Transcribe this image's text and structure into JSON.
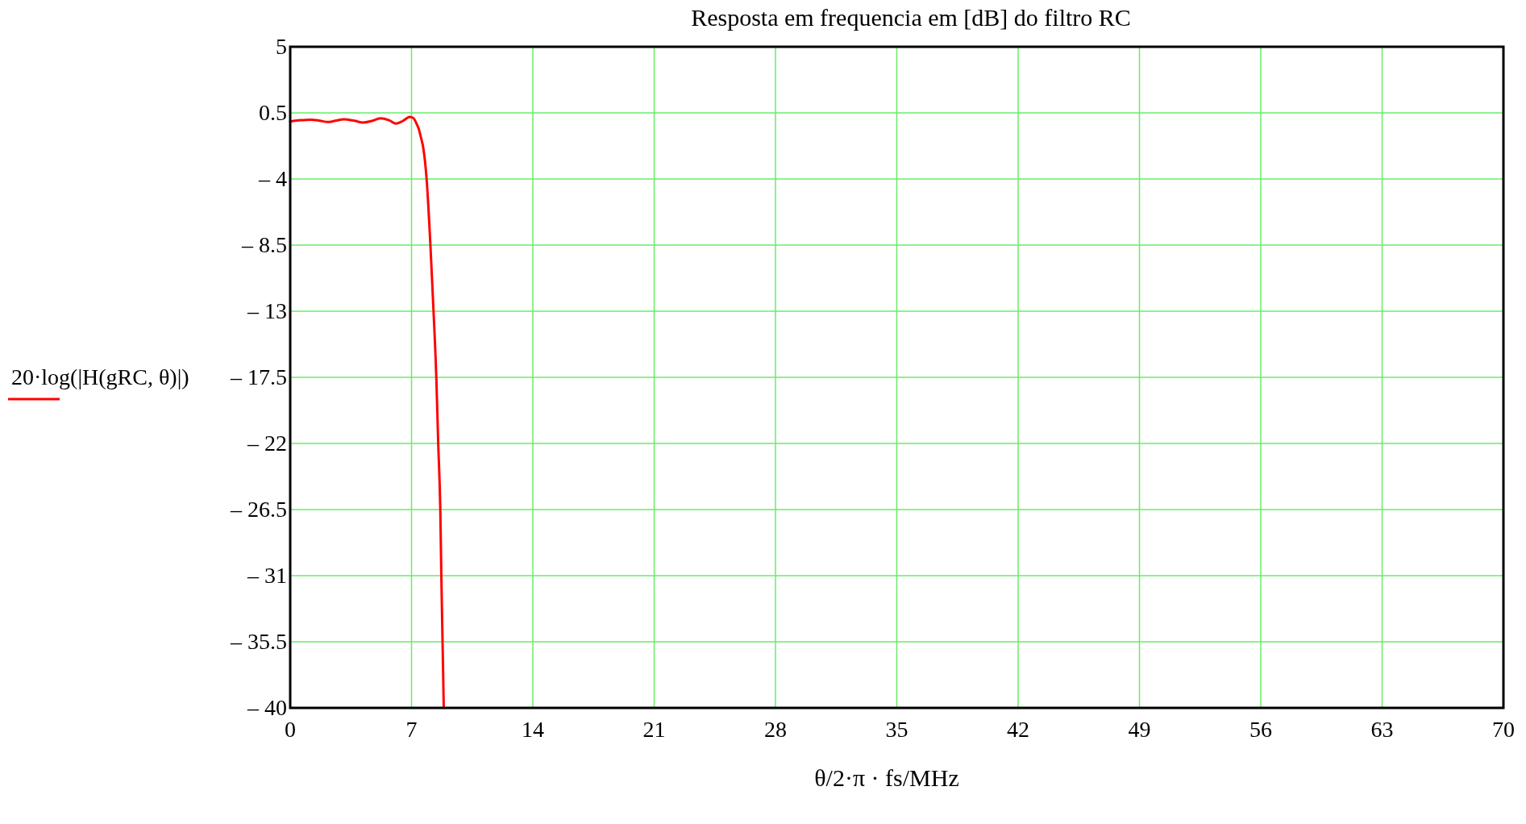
{
  "chart_data": {
    "type": "line",
    "title": "Resposta em frequencia em [dB] do filtro RC",
    "xlabel": "θ/2·π · fs/MHz",
    "ylabel": "20·log(|H(gRC, θ)|)",
    "xlim": [
      0,
      70
    ],
    "xticks": [
      0,
      7,
      14,
      21,
      28,
      35,
      42,
      49,
      56,
      63,
      70
    ],
    "ylim": [
      -40,
      5
    ],
    "yticks": [
      {
        "value": 5,
        "label": "5"
      },
      {
        "value": 0.5,
        "label": "0.5"
      },
      {
        "value": -4,
        "label": "– 4"
      },
      {
        "value": -8.5,
        "label": "– 8.5"
      },
      {
        "value": -13,
        "label": "– 13"
      },
      {
        "value": -17.5,
        "label": "– 17.5"
      },
      {
        "value": -22,
        "label": "– 22"
      },
      {
        "value": -26.5,
        "label": "– 26.5"
      },
      {
        "value": -31,
        "label": "– 31"
      },
      {
        "value": -35.5,
        "label": "– 35.5"
      },
      {
        "value": -40,
        "label": "– 40"
      }
    ],
    "grid": true,
    "line_style": "solid",
    "marker": "none",
    "series": [
      {
        "color": "#ff0000",
        "x": [
          0,
          0.6,
          1.16,
          1.7,
          2.17,
          2.6,
          3.1,
          3.7,
          4.2,
          4.7,
          5.2,
          5.7,
          6.1,
          6.5,
          6.9,
          7.1,
          7.29,
          7.41,
          7.55,
          7.68,
          7.87,
          8.09,
          8.27,
          8.43,
          8.54,
          8.66,
          8.72,
          8.79,
          8.86
        ],
        "values": [
          -0.09,
          0.0,
          0.04,
          -0.03,
          -0.12,
          -0.04,
          0.06,
          -0.04,
          -0.16,
          -0.05,
          0.13,
          0.0,
          -0.23,
          -0.05,
          0.23,
          0.15,
          -0.23,
          -0.57,
          -1.2,
          -1.9,
          -4,
          -8.5,
          -13,
          -17.5,
          -22,
          -26.5,
          -31,
          -35.5,
          -40
        ]
      }
    ]
  }
}
